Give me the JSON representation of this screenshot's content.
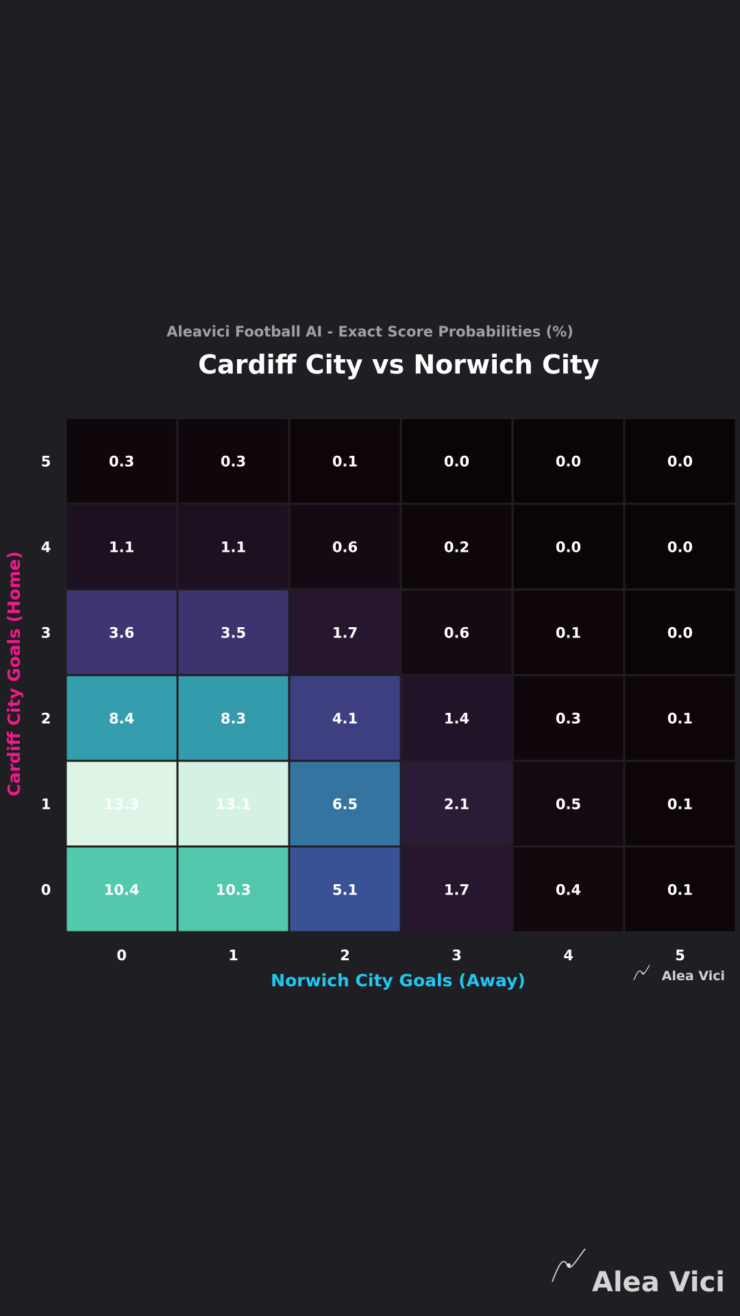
{
  "chart_data": {
    "type": "heatmap",
    "subtitle": "Aleavici Football AI - Exact Score Probabilities (%)",
    "title": "Cardiff City vs Norwich City",
    "xlabel": "Norwich City Goals (Away)",
    "ylabel": "Cardiff City Goals (Home)",
    "x_categories": [
      "0",
      "1",
      "2",
      "3",
      "4",
      "5"
    ],
    "y_categories": [
      "0",
      "1",
      "2",
      "3",
      "4",
      "5"
    ],
    "values": [
      [
        10.4,
        10.3,
        5.1,
        1.7,
        0.4,
        0.1
      ],
      [
        13.3,
        13.1,
        6.5,
        2.1,
        0.5,
        0.1
      ],
      [
        8.4,
        8.3,
        4.1,
        1.4,
        0.3,
        0.1
      ],
      [
        3.6,
        3.5,
        1.7,
        0.6,
        0.1,
        0.0
      ],
      [
        1.1,
        1.1,
        0.6,
        0.2,
        0.0,
        0.0
      ],
      [
        0.3,
        0.3,
        0.1,
        0.0,
        0.0,
        0.0
      ]
    ],
    "colormap": "mako",
    "grid": false,
    "colors": {
      "title": "#ffffff",
      "subtitle": "#a09fa8",
      "xlabel": "#1ec8f0",
      "ylabel": "#ee1a8a",
      "tick": "#ffffff"
    }
  },
  "watermark": {
    "small_text": "Alea Vici",
    "large_text": "Alea Vici"
  }
}
